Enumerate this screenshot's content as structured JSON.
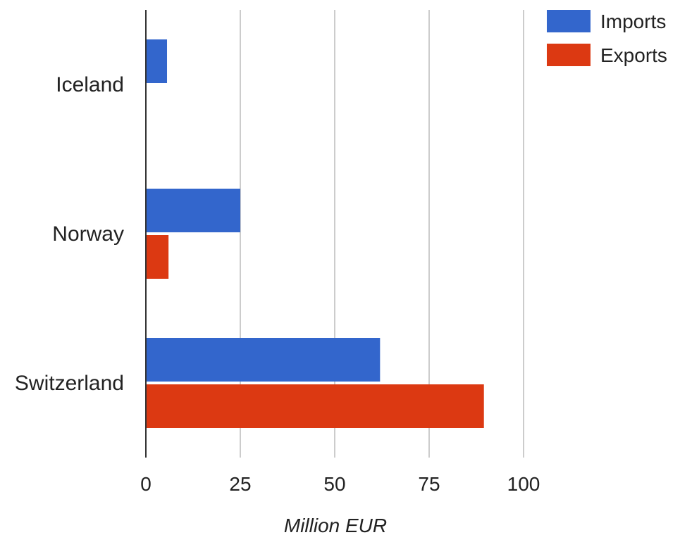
{
  "chart_data": {
    "type": "bar",
    "orientation": "horizontal",
    "categories": [
      "Iceland",
      "Norway",
      "Switzerland"
    ],
    "series": [
      {
        "name": "Imports",
        "color": "#3366cc",
        "values": [
          5.6,
          25,
          62
        ]
      },
      {
        "name": "Exports",
        "color": "#dc3912",
        "values": [
          0,
          6,
          89.5
        ]
      }
    ],
    "xlabel": "Million EUR",
    "ylabel": "",
    "xlim": [
      0,
      100
    ],
    "xticks": [
      "0",
      "25",
      "50",
      "75",
      "100"
    ],
    "grid": "vertical",
    "legend_position": "top-right"
  }
}
